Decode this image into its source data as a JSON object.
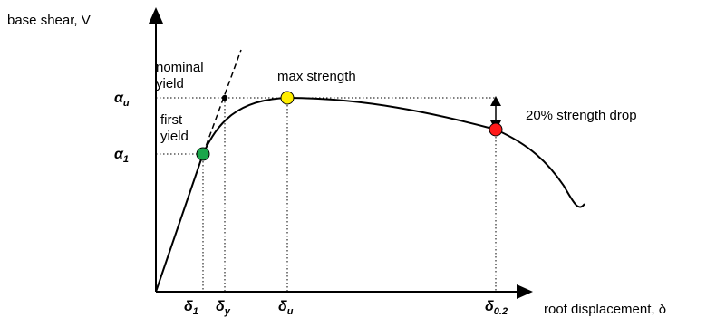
{
  "axes": {
    "y_label": "base shear, V",
    "x_label": "roof displacement, δ"
  },
  "symbols": {
    "alpha_u": {
      "base": "α",
      "sub": "u"
    },
    "alpha_1": {
      "base": "α",
      "sub": "1"
    },
    "delta_1": {
      "base": "δ",
      "sub": "1"
    },
    "delta_y": {
      "base": "δ",
      "sub": "y"
    },
    "delta_u": {
      "base": "δ",
      "sub": "u"
    },
    "delta_02": {
      "base": "δ",
      "sub": "0.2"
    }
  },
  "annotations": {
    "nominal_yield_line1": "nominal",
    "nominal_yield_line2": "yield",
    "first_yield_line1": "first",
    "first_yield_line2": "yield",
    "max_strength": "max strength",
    "strength_drop": "20% strength drop"
  },
  "point_colors": {
    "first_yield": "#1aa64a",
    "max_strength": "#ffee00",
    "strength_drop": "#ff1a1a"
  }
}
